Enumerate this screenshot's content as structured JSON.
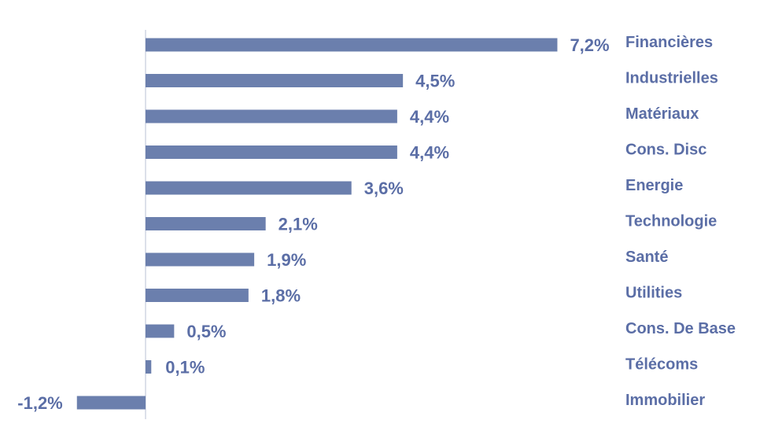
{
  "chart_data": {
    "type": "bar",
    "orientation": "horizontal",
    "categories": [
      "Financières",
      "Industrielles",
      "Matériaux",
      "Cons. Disc",
      "Energie",
      "Technologie",
      "Santé",
      "Utilities",
      "Cons. De Base",
      "Télécoms",
      "Immobilier"
    ],
    "values": [
      7.2,
      4.5,
      4.4,
      4.4,
      3.6,
      2.1,
      1.9,
      1.8,
      0.5,
      0.1,
      -1.2
    ],
    "value_labels": [
      "7,2%",
      "4,5%",
      "4,4%",
      "4,4%",
      "3,6%",
      "2,1%",
      "1,9%",
      "1,8%",
      "0,5%",
      "0,1%",
      "-1,2%"
    ],
    "unit": "%",
    "title": "",
    "xlabel": "",
    "ylabel": "",
    "grid": false,
    "legend": "none",
    "colors": {
      "bar": "#6b7fad",
      "text": "#5b6ea6",
      "axis": "#d0d6e4"
    }
  }
}
